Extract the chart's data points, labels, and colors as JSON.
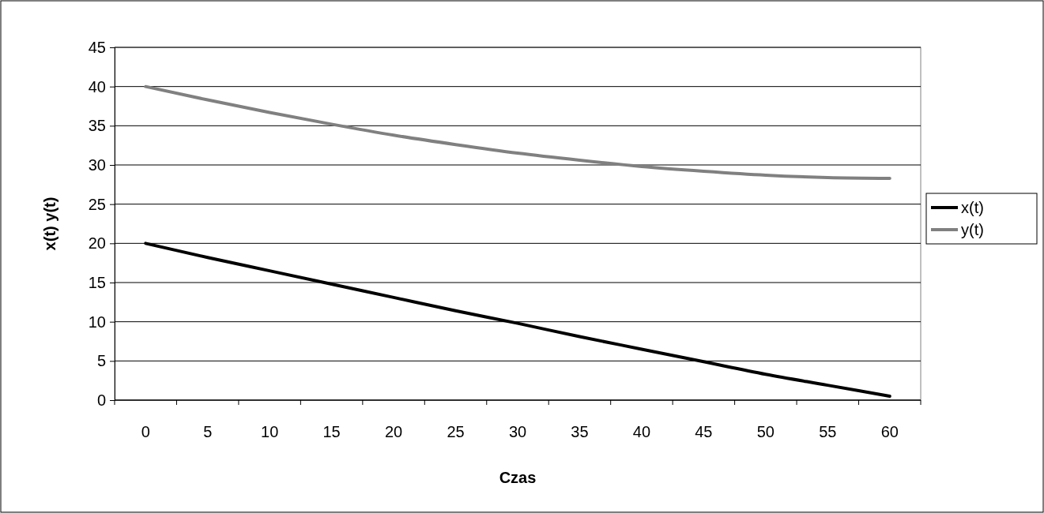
{
  "chart_data": {
    "type": "line",
    "xlabel": "Czas",
    "ylabel": "x(t) y(t)",
    "categories": [
      "0",
      "5",
      "10",
      "15",
      "20",
      "25",
      "30",
      "35",
      "40",
      "45",
      "50",
      "55",
      "60"
    ],
    "series": [
      {
        "name": "x(t)",
        "color": "#000000",
        "values": [
          20,
          18.2,
          16.5,
          14.8,
          13.1,
          11.4,
          9.8,
          8.1,
          6.5,
          4.9,
          3.3,
          1.9,
          0.5
        ]
      },
      {
        "name": "y(t)",
        "color": "#808080",
        "values": [
          40,
          38.3,
          36.7,
          35.2,
          33.8,
          32.6,
          31.5,
          30.6,
          29.8,
          29.2,
          28.7,
          28.4,
          28.3
        ]
      }
    ],
    "ylim": [
      0,
      45
    ],
    "yticks": [
      0,
      5,
      10,
      15,
      20,
      25,
      30,
      35,
      40,
      45
    ],
    "grid": "y",
    "legend": "right",
    "marker": "none",
    "line_style": "solid"
  }
}
